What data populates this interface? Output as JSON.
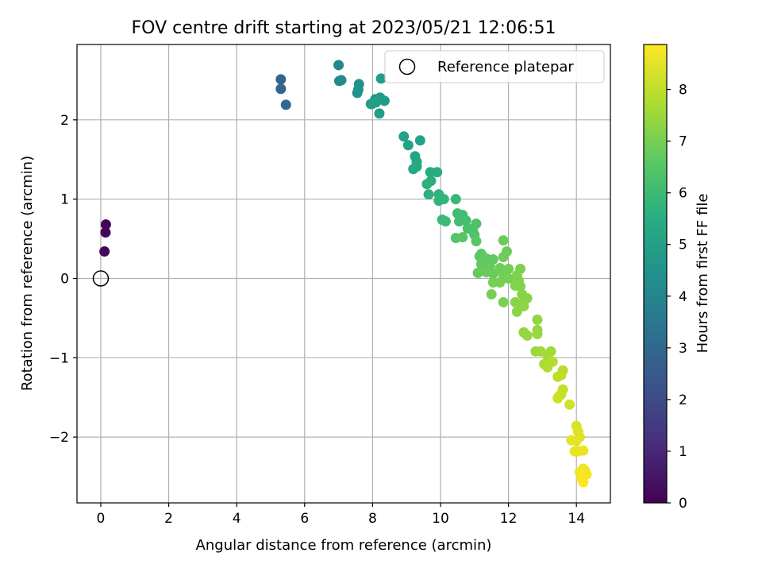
{
  "chart_data": {
    "type": "scatter",
    "title": "FOV centre drift starting at 2023/05/21 12:06:51",
    "xlabel": "Angular distance from reference (arcmin)",
    "ylabel": "Rotation from reference (arcmin)",
    "xlim": [
      -0.7,
      15.0
    ],
    "ylim": [
      -2.83,
      2.95
    ],
    "xticks": [
      0,
      2,
      4,
      6,
      8,
      10,
      12,
      14
    ],
    "yticks": [
      -2,
      -1,
      0,
      1,
      2
    ],
    "xtick_labels": [
      "0",
      "2",
      "4",
      "6",
      "8",
      "10",
      "12",
      "14"
    ],
    "ytick_labels": [
      "−2",
      "−1",
      "0",
      "1",
      "2"
    ],
    "grid": true,
    "legend": {
      "position": "top-right",
      "label": "Reference platepar"
    },
    "reference_point": {
      "x": 0,
      "y": 0
    },
    "colormap": "viridis",
    "colorbar": {
      "label": "Hours from first FF file",
      "range": [
        0,
        8.87
      ],
      "ticks": [
        0,
        1,
        2,
        3,
        4,
        5,
        6,
        7,
        8
      ],
      "tick_labels": [
        "0",
        "1",
        "2",
        "3",
        "4",
        "5",
        "6",
        "7",
        "8"
      ]
    },
    "points": [
      {
        "x": 0.15,
        "y": 0.68,
        "h": 0.05
      },
      {
        "x": 0.14,
        "y": 0.58,
        "h": 0.1
      },
      {
        "x": 0.11,
        "y": 0.34,
        "h": 0.15
      },
      {
        "x": 5.3,
        "y": 2.51,
        "h": 2.9
      },
      {
        "x": 5.3,
        "y": 2.39,
        "h": 2.95
      },
      {
        "x": 5.45,
        "y": 2.19,
        "h": 3.0
      },
      {
        "x": 7.0,
        "y": 2.69,
        "h": 4.1
      },
      {
        "x": 7.02,
        "y": 2.49,
        "h": 4.15
      },
      {
        "x": 7.08,
        "y": 2.5,
        "h": 4.2
      },
      {
        "x": 7.6,
        "y": 2.45,
        "h": 4.4
      },
      {
        "x": 7.58,
        "y": 2.38,
        "h": 4.45
      },
      {
        "x": 7.55,
        "y": 2.34,
        "h": 4.5
      },
      {
        "x": 7.98,
        "y": 2.2,
        "h": 4.7
      },
      {
        "x": 8.08,
        "y": 2.26,
        "h": 4.75
      },
      {
        "x": 8.22,
        "y": 2.28,
        "h": 4.8
      },
      {
        "x": 8.35,
        "y": 2.24,
        "h": 4.85
      },
      {
        "x": 8.2,
        "y": 2.08,
        "h": 4.9
      },
      {
        "x": 8.25,
        "y": 2.52,
        "h": 4.95
      },
      {
        "x": 8.1,
        "y": 2.22,
        "h": 5.0
      },
      {
        "x": 7.95,
        "y": 2.2,
        "h": 5.0
      },
      {
        "x": 8.92,
        "y": 1.79,
        "h": 5.1
      },
      {
        "x": 9.05,
        "y": 1.68,
        "h": 5.15
      },
      {
        "x": 9.4,
        "y": 1.74,
        "h": 5.2
      },
      {
        "x": 9.25,
        "y": 1.54,
        "h": 5.25
      },
      {
        "x": 9.3,
        "y": 1.47,
        "h": 5.3
      },
      {
        "x": 9.2,
        "y": 1.38,
        "h": 5.35
      },
      {
        "x": 9.3,
        "y": 1.41,
        "h": 5.4
      },
      {
        "x": 9.7,
        "y": 1.34,
        "h": 5.45
      },
      {
        "x": 9.9,
        "y": 1.34,
        "h": 5.5
      },
      {
        "x": 9.72,
        "y": 1.23,
        "h": 5.55
      },
      {
        "x": 9.6,
        "y": 1.19,
        "h": 5.6
      },
      {
        "x": 9.65,
        "y": 1.06,
        "h": 5.65
      },
      {
        "x": 9.95,
        "y": 1.06,
        "h": 5.7
      },
      {
        "x": 9.95,
        "y": 0.98,
        "h": 5.75
      },
      {
        "x": 10.1,
        "y": 1.0,
        "h": 5.8
      },
      {
        "x": 10.45,
        "y": 1.0,
        "h": 5.9
      },
      {
        "x": 10.05,
        "y": 0.74,
        "h": 5.95
      },
      {
        "x": 10.15,
        "y": 0.72,
        "h": 6.0
      },
      {
        "x": 10.5,
        "y": 0.82,
        "h": 6.05
      },
      {
        "x": 10.65,
        "y": 0.8,
        "h": 6.1
      },
      {
        "x": 10.55,
        "y": 0.72,
        "h": 6.15
      },
      {
        "x": 10.75,
        "y": 0.73,
        "h": 6.2
      },
      {
        "x": 10.8,
        "y": 0.63,
        "h": 6.25
      },
      {
        "x": 10.95,
        "y": 0.6,
        "h": 6.3
      },
      {
        "x": 11.05,
        "y": 0.69,
        "h": 6.35
      },
      {
        "x": 11.0,
        "y": 0.55,
        "h": 6.4
      },
      {
        "x": 10.45,
        "y": 0.51,
        "h": 6.45
      },
      {
        "x": 10.65,
        "y": 0.52,
        "h": 6.5
      },
      {
        "x": 11.05,
        "y": 0.47,
        "h": 6.55
      },
      {
        "x": 11.15,
        "y": 0.28,
        "h": 6.6
      },
      {
        "x": 11.2,
        "y": 0.31,
        "h": 6.6
      },
      {
        "x": 11.35,
        "y": 0.25,
        "h": 6.65
      },
      {
        "x": 11.55,
        "y": 0.24,
        "h": 6.7
      },
      {
        "x": 11.2,
        "y": 0.18,
        "h": 6.7
      },
      {
        "x": 11.45,
        "y": 0.16,
        "h": 6.75
      },
      {
        "x": 11.1,
        "y": 0.07,
        "h": 6.75
      },
      {
        "x": 11.35,
        "y": 0.08,
        "h": 6.8
      },
      {
        "x": 11.55,
        "y": 0.06,
        "h": 6.8
      },
      {
        "x": 11.85,
        "y": 0.48,
        "h": 6.85
      },
      {
        "x": 11.95,
        "y": 0.34,
        "h": 6.85
      },
      {
        "x": 11.85,
        "y": 0.27,
        "h": 6.9
      },
      {
        "x": 11.75,
        "y": 0.13,
        "h": 6.9
      },
      {
        "x": 12.0,
        "y": 0.12,
        "h": 6.95
      },
      {
        "x": 11.85,
        "y": 0.04,
        "h": 6.95
      },
      {
        "x": 12.0,
        "y": 0.0,
        "h": 7.0
      },
      {
        "x": 11.55,
        "y": -0.05,
        "h": 7.0
      },
      {
        "x": 11.75,
        "y": -0.05,
        "h": 7.05
      },
      {
        "x": 11.5,
        "y": -0.2,
        "h": 7.05
      },
      {
        "x": 11.85,
        "y": -0.3,
        "h": 7.1
      },
      {
        "x": 12.35,
        "y": 0.12,
        "h": 7.1
      },
      {
        "x": 12.25,
        "y": 0.04,
        "h": 7.15
      },
      {
        "x": 12.3,
        "y": -0.03,
        "h": 7.15
      },
      {
        "x": 12.2,
        "y": -0.09,
        "h": 7.2
      },
      {
        "x": 12.35,
        "y": -0.1,
        "h": 7.2
      },
      {
        "x": 12.4,
        "y": -0.2,
        "h": 7.25
      },
      {
        "x": 12.55,
        "y": -0.25,
        "h": 7.25
      },
      {
        "x": 12.2,
        "y": -0.3,
        "h": 7.3
      },
      {
        "x": 12.4,
        "y": -0.32,
        "h": 7.3
      },
      {
        "x": 12.25,
        "y": -0.42,
        "h": 7.35
      },
      {
        "x": 12.45,
        "y": -0.35,
        "h": 7.35
      },
      {
        "x": 12.85,
        "y": -0.52,
        "h": 7.4
      },
      {
        "x": 12.45,
        "y": -0.68,
        "h": 7.4
      },
      {
        "x": 12.55,
        "y": -0.72,
        "h": 7.45
      },
      {
        "x": 12.85,
        "y": -0.65,
        "h": 7.45
      },
      {
        "x": 12.85,
        "y": -0.7,
        "h": 7.5
      },
      {
        "x": 12.8,
        "y": -0.92,
        "h": 7.55
      },
      {
        "x": 12.95,
        "y": -0.92,
        "h": 7.6
      },
      {
        "x": 13.25,
        "y": -0.92,
        "h": 7.65
      },
      {
        "x": 13.15,
        "y": -0.97,
        "h": 7.7
      },
      {
        "x": 13.05,
        "y": -1.08,
        "h": 7.75
      },
      {
        "x": 13.15,
        "y": -1.12,
        "h": 7.8
      },
      {
        "x": 13.3,
        "y": -1.05,
        "h": 7.85
      },
      {
        "x": 13.6,
        "y": -1.16,
        "h": 7.9
      },
      {
        "x": 13.55,
        "y": -1.22,
        "h": 7.95
      },
      {
        "x": 13.45,
        "y": -1.24,
        "h": 8.0
      },
      {
        "x": 13.6,
        "y": -1.4,
        "h": 8.05
      },
      {
        "x": 13.55,
        "y": -1.46,
        "h": 8.1
      },
      {
        "x": 13.5,
        "y": -1.48,
        "h": 8.15
      },
      {
        "x": 13.45,
        "y": -1.51,
        "h": 8.2
      },
      {
        "x": 13.8,
        "y": -1.59,
        "h": 8.25
      },
      {
        "x": 14.0,
        "y": -1.86,
        "h": 8.35
      },
      {
        "x": 14.05,
        "y": -1.93,
        "h": 8.4
      },
      {
        "x": 14.1,
        "y": -2.0,
        "h": 8.45
      },
      {
        "x": 13.85,
        "y": -2.04,
        "h": 8.5
      },
      {
        "x": 14.0,
        "y": -2.05,
        "h": 8.5
      },
      {
        "x": 13.95,
        "y": -2.18,
        "h": 8.55
      },
      {
        "x": 14.05,
        "y": -2.18,
        "h": 8.55
      },
      {
        "x": 14.2,
        "y": -2.17,
        "h": 8.6
      },
      {
        "x": 14.1,
        "y": -2.44,
        "h": 8.65
      },
      {
        "x": 14.2,
        "y": -2.4,
        "h": 8.65
      },
      {
        "x": 14.25,
        "y": -2.42,
        "h": 8.7
      },
      {
        "x": 14.15,
        "y": -2.46,
        "h": 8.7
      },
      {
        "x": 14.25,
        "y": -2.48,
        "h": 8.75
      },
      {
        "x": 14.3,
        "y": -2.47,
        "h": 8.75
      },
      {
        "x": 14.15,
        "y": -2.52,
        "h": 8.8
      },
      {
        "x": 14.2,
        "y": -2.57,
        "h": 8.85
      }
    ]
  }
}
